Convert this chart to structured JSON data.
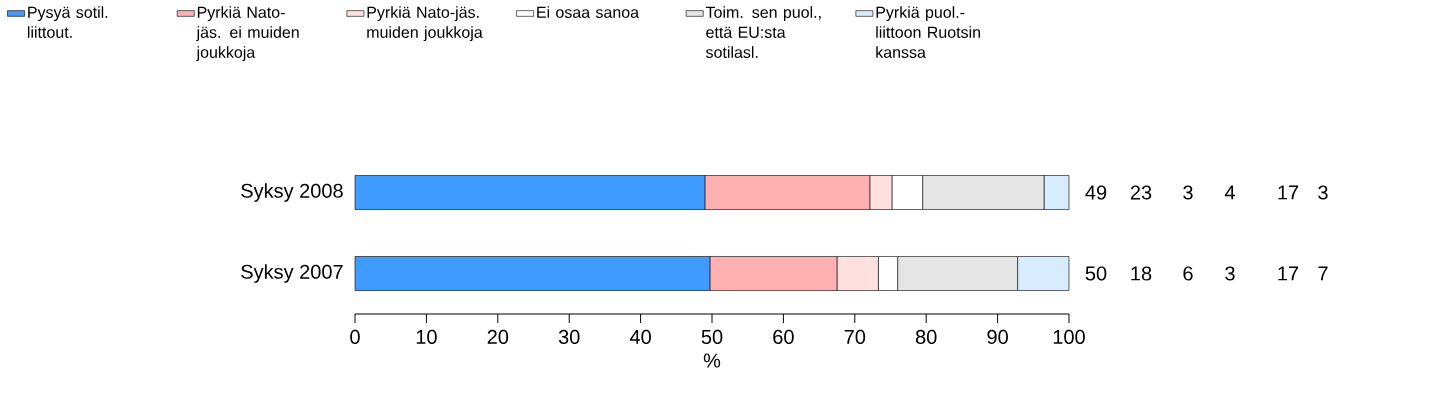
{
  "chart_data": {
    "type": "bar",
    "orientation": "horizontal",
    "stacked": true,
    "xlabel": "%",
    "categories": [
      "Syksy 2008",
      "Syksy 2007"
    ],
    "series": [
      {
        "name": "Pysyä sotil. liittout.",
        "color": "#3f9bff",
        "values": [
          49,
          49.7
        ],
        "value_labels": [
          "49",
          "50"
        ]
      },
      {
        "name": "Pyrkiä Nato-jäs. ei muiden joukkoja",
        "color": "#ffb0b0",
        "values": [
          23.1,
          17.8
        ],
        "value_labels": [
          "23",
          "18"
        ]
      },
      {
        "name": "Pyrkiä Nato-jäs. muiden joukkoja",
        "color": "#ffe0e0",
        "values": [
          3.1,
          5.8
        ],
        "value_labels": [
          "3",
          "6"
        ]
      },
      {
        "name": "Ei osaa sanoa",
        "color": "#ffffff",
        "values": [
          4.3,
          2.7
        ],
        "value_labels": [
          "4",
          "3"
        ]
      },
      {
        "name": "Toim. sen puol., että EU:sta sotilasl.",
        "color": "#e5e5e5",
        "values": [
          17,
          16.8
        ],
        "value_labels": [
          "17",
          "17"
        ]
      },
      {
        "name": "Pyrkiä puol.-liittoon Ruotsin kanssa",
        "color": "#d8ecff",
        "values": [
          3.5,
          7.2
        ],
        "value_labels": [
          "3",
          "7"
        ]
      }
    ],
    "xlim": [
      0,
      100
    ],
    "xticks": [
      0,
      10,
      20,
      30,
      40,
      50,
      60,
      70,
      80,
      90,
      100
    ],
    "legend": "top"
  }
}
